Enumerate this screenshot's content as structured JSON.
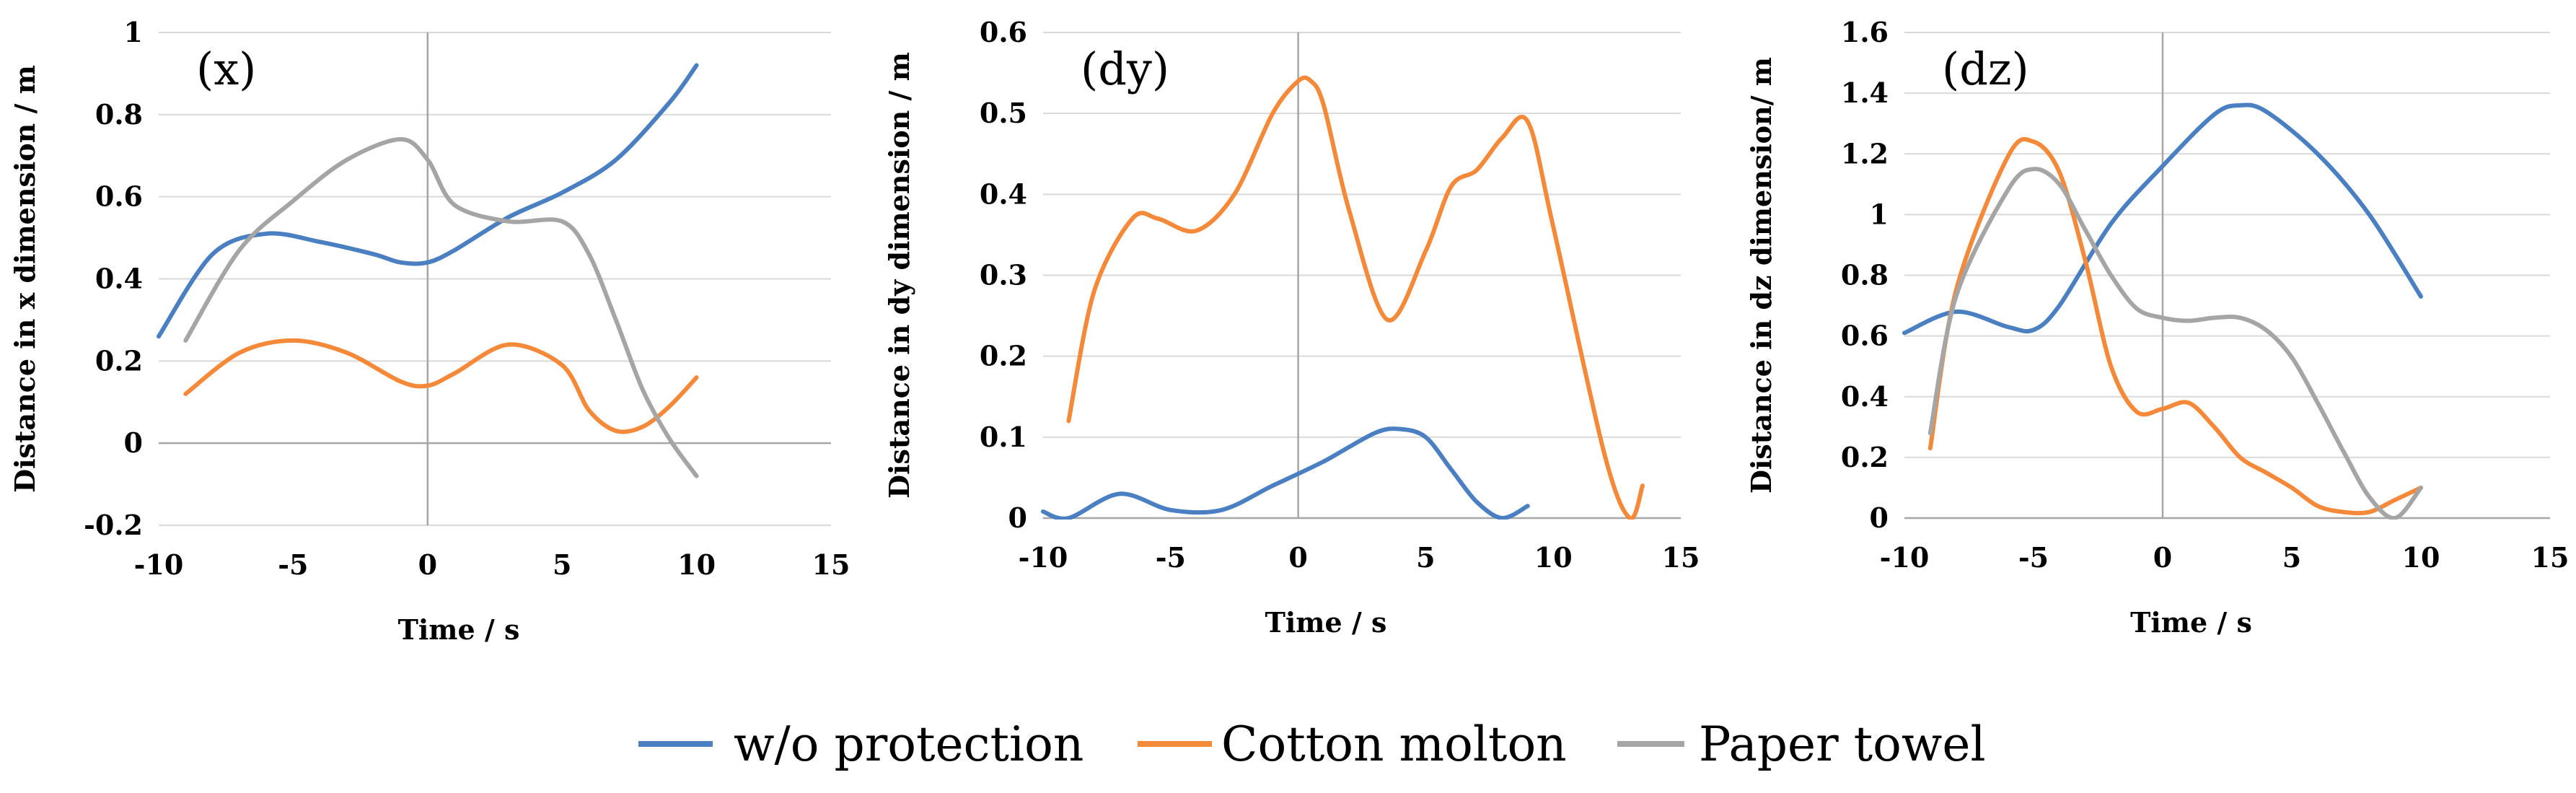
{
  "legend": [
    {
      "name": "w/o protection",
      "color": "#4a7fc1"
    },
    {
      "name": "Cotton molton",
      "color": "#f5893a"
    },
    {
      "name": "Paper towel",
      "color": "#a5a5a5"
    }
  ],
  "chart_data": [
    {
      "type": "line",
      "panel_label": "(x)",
      "xlabel": "Time / s",
      "ylabel": "Distance in x dimension / m",
      "xlim": [
        -10,
        15
      ],
      "ylim": [
        -0.2,
        1
      ],
      "xticks": [
        -10,
        -5,
        0,
        5,
        10,
        15
      ],
      "xtick_labels": [
        "-10",
        "-5",
        "0",
        "5",
        "10",
        "15"
      ],
      "yticks": [
        -0.2,
        0,
        0.2,
        0.4,
        0.6,
        0.8,
        1
      ],
      "ytick_labels": [
        "-0.2",
        "0",
        "0.2",
        "0.4",
        "0.6",
        "0.8",
        "1"
      ],
      "series": [
        {
          "name": "w/o protection",
          "color": "#4a7fc1",
          "x": [
            -10,
            -8,
            -6,
            -4,
            -2,
            -1,
            0,
            1,
            3,
            5,
            7,
            9,
            10
          ],
          "y": [
            0.26,
            0.46,
            0.51,
            0.49,
            0.46,
            0.44,
            0.44,
            0.47,
            0.55,
            0.61,
            0.69,
            0.83,
            0.92
          ]
        },
        {
          "name": "Cotton molton",
          "color": "#f5893a",
          "x": [
            -9,
            -7,
            -5,
            -3,
            -1,
            0,
            1,
            3,
            5,
            6,
            7,
            8,
            9,
            10
          ],
          "y": [
            0.12,
            0.22,
            0.25,
            0.22,
            0.15,
            0.14,
            0.17,
            0.24,
            0.19,
            0.08,
            0.03,
            0.04,
            0.09,
            0.16
          ]
        },
        {
          "name": "Paper towel",
          "color": "#a5a5a5",
          "x": [
            -9,
            -7,
            -5,
            -3,
            -1,
            0,
            1,
            3,
            5,
            6,
            7,
            8,
            9,
            10
          ],
          "y": [
            0.25,
            0.47,
            0.59,
            0.69,
            0.74,
            0.69,
            0.58,
            0.54,
            0.54,
            0.46,
            0.3,
            0.13,
            0.01,
            -0.08
          ]
        }
      ]
    },
    {
      "type": "line",
      "panel_label": "(dy)",
      "xlabel": "Time / s",
      "ylabel": "Distance in dy dimension / m",
      "xlim": [
        -10,
        15
      ],
      "ylim": [
        0,
        0.6
      ],
      "xticks": [
        -10,
        -5,
        0,
        5,
        10,
        15
      ],
      "xtick_labels": [
        "-10",
        "-5",
        "0",
        "5",
        "10",
        "15"
      ],
      "yticks": [
        0,
        0.1,
        0.2,
        0.3,
        0.4,
        0.5,
        0.6
      ],
      "ytick_labels": [
        "0",
        "0.1",
        "0.2",
        "0.3",
        "0.4",
        "0.5",
        "0.6"
      ],
      "series": [
        {
          "name": "w/o protection",
          "color": "#4a7fc1",
          "x": [
            -10,
            -9,
            -7,
            -5,
            -3,
            -1,
            1,
            3,
            4,
            5,
            6,
            7,
            8,
            9
          ],
          "y": [
            0.008,
            0,
            0.03,
            0.01,
            0.01,
            0.04,
            0.07,
            0.105,
            0.11,
            0.1,
            0.06,
            0.02,
            0,
            0.015
          ]
        },
        {
          "name": "Cotton molton",
          "color": "#f5893a",
          "x": [
            -9,
            -8,
            -6.5,
            -5.5,
            -4,
            -2.5,
            -1,
            0,
            0.5,
            1,
            2,
            3.5,
            5,
            6,
            7,
            8,
            9,
            10,
            12,
            13,
            13.5
          ],
          "y": [
            0.12,
            0.28,
            0.37,
            0.37,
            0.355,
            0.4,
            0.5,
            0.54,
            0.54,
            0.51,
            0.38,
            0.245,
            0.33,
            0.41,
            0.43,
            0.47,
            0.49,
            0.36,
            0.08,
            0,
            0.04
          ]
        }
      ]
    },
    {
      "type": "line",
      "panel_label": "(dz)",
      "xlabel": "Time / s",
      "ylabel": "Distance in dz dimension/ m",
      "xlim": [
        -10,
        15
      ],
      "ylim": [
        0,
        1.6
      ],
      "xticks": [
        -10,
        -5,
        0,
        5,
        10,
        15
      ],
      "xtick_labels": [
        "-10",
        "-5",
        "0",
        "5",
        "10",
        "15"
      ],
      "yticks": [
        0,
        0.2,
        0.4,
        0.6,
        0.8,
        1,
        1.2,
        1.4,
        1.6
      ],
      "ytick_labels": [
        "0",
        "0.2",
        "0.4",
        "0.6",
        "0.8",
        "1",
        "1.2",
        "1.4",
        "1.6"
      ],
      "series": [
        {
          "name": "w/o protection",
          "color": "#4a7fc1",
          "x": [
            -10,
            -8,
            -6,
            -5,
            -4,
            -2,
            0,
            2,
            3,
            4,
            6,
            8,
            10
          ],
          "y": [
            0.61,
            0.68,
            0.63,
            0.62,
            0.7,
            0.97,
            1.16,
            1.33,
            1.36,
            1.34,
            1.2,
            1.0,
            0.73
          ]
        },
        {
          "name": "Cotton molton",
          "color": "#f5893a",
          "x": [
            -9,
            -8,
            -6,
            -5,
            -4,
            -3,
            -2,
            -1,
            0,
            1,
            2,
            3,
            4,
            5,
            6,
            7,
            8,
            9,
            10
          ],
          "y": [
            0.23,
            0.75,
            1.19,
            1.24,
            1.14,
            0.85,
            0.5,
            0.35,
            0.36,
            0.38,
            0.3,
            0.2,
            0.15,
            0.1,
            0.04,
            0.02,
            0.02,
            0.06,
            0.1
          ]
        },
        {
          "name": "Paper towel",
          "color": "#a5a5a5",
          "x": [
            -9,
            -8,
            -6,
            -5,
            -4,
            -3,
            -2,
            -1,
            0,
            1,
            2,
            3,
            4,
            5,
            6,
            7,
            8,
            9,
            10
          ],
          "y": [
            0.28,
            0.73,
            1.08,
            1.15,
            1.1,
            0.95,
            0.8,
            0.69,
            0.66,
            0.65,
            0.66,
            0.66,
            0.62,
            0.53,
            0.38,
            0.22,
            0.07,
            0,
            0.1
          ]
        }
      ]
    }
  ]
}
